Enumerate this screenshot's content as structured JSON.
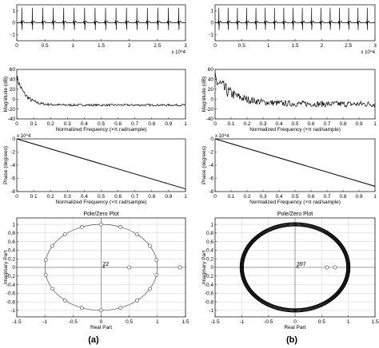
{
  "captions": {
    "a": "(a)",
    "b": "(b)"
  },
  "chart_data": [
    {
      "id": "a1",
      "type": "line",
      "x_range": [
        0,
        30000
      ],
      "ylim": [
        -1.5,
        1.5
      ],
      "xticks": [
        0,
        0.5,
        1,
        1.5,
        2,
        2.5,
        3
      ],
      "yticks": [
        -1,
        0,
        1
      ],
      "x_multiplier": "x 10^4",
      "series": [
        {
          "values": {
            "beats": 16,
            "first_beat_x": 900,
            "spacing": 1860,
            "r_peak": 1.25,
            "s_trough": -0.6
          }
        }
      ]
    },
    {
      "id": "b1",
      "type": "line",
      "x_range": [
        0,
        30000
      ],
      "ylim": [
        -1.5,
        1.5
      ],
      "xticks": [
        0,
        0.5,
        1,
        1.5,
        2,
        2.5,
        3
      ],
      "yticks": [
        -1,
        0,
        1
      ],
      "x_multiplier": "x 10^4",
      "series": [
        {
          "values": {
            "beats": 17,
            "first_beat_x": 700,
            "spacing": 1740,
            "r_peak": 1.25,
            "s_trough": -0.6
          }
        }
      ]
    },
    {
      "id": "a2",
      "type": "line",
      "xlabel": "Normalized Frequency  (×π rad/sample)",
      "ylabel": "Magnitude (dB)",
      "xlim": [
        0,
        1
      ],
      "ylim": [
        -40,
        60
      ],
      "xticks": [
        0,
        0.1,
        0.2,
        0.3,
        0.4,
        0.5,
        0.6,
        0.7,
        0.8,
        0.9,
        1
      ],
      "yticks": [
        -40,
        -20,
        0,
        20,
        40,
        60
      ],
      "series": [
        {
          "values": {
            "start_db": 45,
            "end_db": -12,
            "decay": 0.05,
            "noise_db": 2
          }
        }
      ]
    },
    {
      "id": "b2",
      "type": "line",
      "xlabel": "Normalized Frequency  (×π rad/sample)",
      "ylabel": "Magnitude (dB)",
      "xlim": [
        0,
        1
      ],
      "ylim": [
        -40,
        60
      ],
      "xticks": [
        0,
        0.1,
        0.2,
        0.3,
        0.4,
        0.5,
        0.6,
        0.7,
        0.8,
        0.9,
        1
      ],
      "yticks": [
        -40,
        -20,
        0,
        20,
        40,
        60
      ],
      "series": [
        {
          "values": {
            "start_db": 40,
            "end_db": -10,
            "decay": 0.12,
            "noise_db": 6
          }
        }
      ]
    },
    {
      "id": "a3",
      "type": "line",
      "xlabel": "Normalized Frequency  (×π rad/sample)",
      "ylabel": "Phase (degrees)",
      "xlim": [
        0,
        1
      ],
      "ylim": [
        -8000,
        0
      ],
      "xticks": [
        0,
        0.1,
        0.2,
        0.3,
        0.4,
        0.5,
        0.6,
        0.7,
        0.8,
        0.9,
        1
      ],
      "yticks": [
        -8,
        -6,
        -4,
        -2,
        0
      ],
      "y_multiplier": "x 10^4",
      "series": [
        {
          "x": [
            0,
            1
          ],
          "y": [
            0,
            -7600
          ]
        }
      ]
    },
    {
      "id": "b3",
      "type": "line",
      "xlabel": "Normalized Frequency  (×π rad/sample)",
      "ylabel": "Phase (degrees)",
      "xlim": [
        0,
        1
      ],
      "ylim": [
        -8000,
        0
      ],
      "xticks": [
        0,
        0.1,
        0.2,
        0.3,
        0.4,
        0.5,
        0.6,
        0.7,
        0.8,
        0.9,
        1
      ],
      "yticks": [
        -8,
        -6,
        -4,
        -2,
        0
      ],
      "y_multiplier": "x 10^4",
      "series": [
        {
          "x": [
            0,
            1
          ],
          "y": [
            0,
            -7200
          ]
        }
      ]
    },
    {
      "id": "a4",
      "type": "scatter",
      "title": "Pole/Zero Plot",
      "xlabel": "Real Part",
      "ylabel": "Imaginary Part",
      "xlim": [
        -1.5,
        1.5
      ],
      "ylim": [
        -1.15,
        1.15
      ],
      "grid": true,
      "xticks": [
        -1.5,
        -1,
        -0.5,
        0,
        0.5,
        1,
        1.5
      ],
      "yticks": [
        -1,
        -0.8,
        -0.6,
        -0.4,
        -0.2,
        0,
        0.2,
        0.4,
        0.6,
        0.8,
        1
      ],
      "pole_count_label": "22",
      "zeros_on_unit_circle": 18,
      "zeros_real": [
        0.5,
        1.4
      ]
    },
    {
      "id": "b4",
      "type": "scatter",
      "title": "Pole/Zero Plot",
      "xlabel": "Real Part",
      "ylabel": "Imaginary Part",
      "xlim": [
        -1.5,
        1.5
      ],
      "ylim": [
        -1.15,
        1.15
      ],
      "grid": true,
      "xticks": [
        -1.5,
        -1,
        -0.5,
        0,
        0.5,
        1,
        1.5
      ],
      "yticks": [
        -1,
        -0.8,
        -0.6,
        -0.4,
        -0.2,
        0,
        0.2,
        0.4,
        0.6,
        0.8,
        1
      ],
      "pole_count_label": "397",
      "zeros_on_unit_circle": 396,
      "zeros_real": [
        0.6,
        0.75
      ]
    }
  ]
}
